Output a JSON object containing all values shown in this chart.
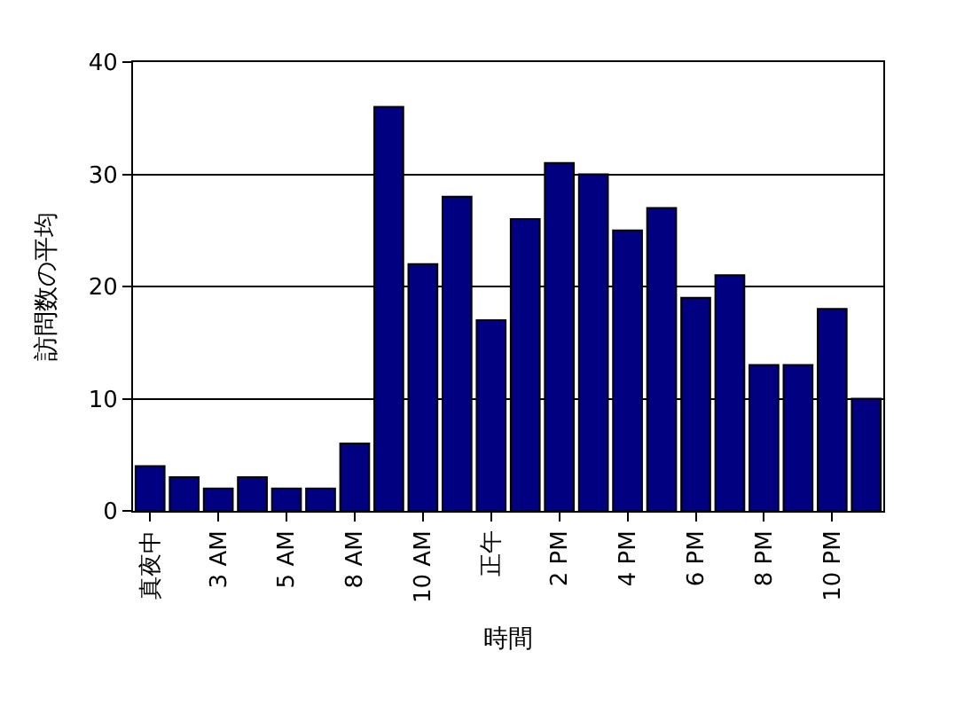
{
  "chart_data": {
    "type": "bar",
    "xlabel": "時間",
    "ylabel": "訪問数の平均",
    "categories": [
      "真夜中",
      null,
      "3 AM",
      null,
      "5 AM",
      null,
      "8 AM",
      null,
      "10 AM",
      null,
      "正午",
      null,
      "2 PM",
      null,
      "4 PM",
      null,
      "6 PM",
      null,
      "8 PM",
      null,
      "10 PM",
      null
    ],
    "values": [
      4,
      3,
      2,
      3,
      2,
      2,
      6,
      36,
      22,
      28,
      17,
      26,
      31,
      30,
      25,
      27,
      19,
      21,
      13,
      13,
      18,
      10
    ],
    "color": "#000080",
    "ylim": [
      0,
      40
    ],
    "yticks": [
      0,
      10,
      20,
      30,
      40
    ],
    "grid": "y",
    "legend": false
  }
}
